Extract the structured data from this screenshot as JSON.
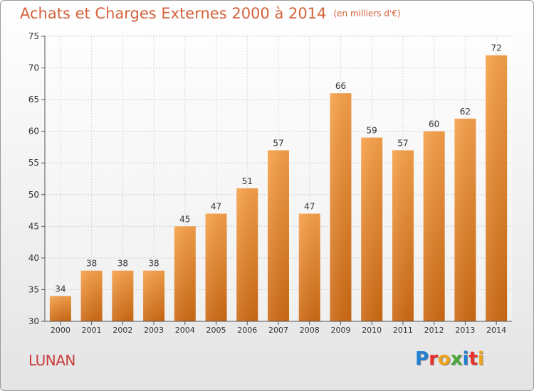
{
  "chart_data": {
    "type": "bar",
    "title": "Achats et Charges Externes 2000 à 2014",
    "subtitle": "(en milliers d'€)",
    "categories": [
      "2000",
      "2001",
      "2002",
      "2003",
      "2004",
      "2005",
      "2006",
      "2007",
      "2008",
      "2009",
      "2010",
      "2011",
      "2012",
      "2013",
      "2014"
    ],
    "values": [
      34,
      38,
      38,
      38,
      45,
      47,
      51,
      57,
      47,
      66,
      59,
      57,
      60,
      62,
      72
    ],
    "ylim": [
      30,
      75
    ],
    "yticks": [
      30,
      35,
      40,
      45,
      50,
      55,
      60,
      65,
      70,
      75
    ],
    "grid": true,
    "bar_color": "#f0882c",
    "xlabel": "",
    "ylabel": ""
  },
  "footer": {
    "town": "LUNAN",
    "logo_letters": [
      "P",
      "r",
      "o",
      "x",
      "i",
      "t",
      "i"
    ],
    "logo_colors": [
      "#1f7fd1",
      "#e8312e",
      "#f3a31a",
      "#4aa83a",
      "#1f7fd1",
      "#e8312e",
      "#f3a31a"
    ]
  }
}
